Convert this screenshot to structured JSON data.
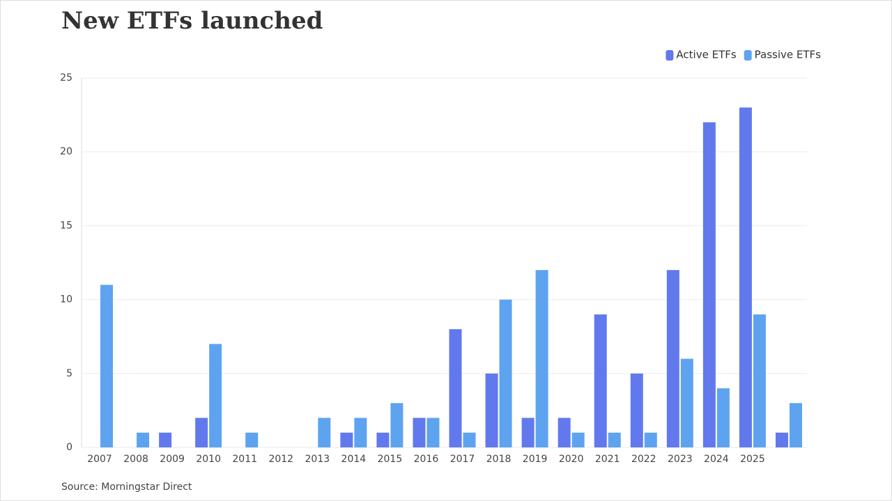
{
  "chart_data": {
    "type": "bar",
    "title": "New ETFs launched",
    "source": "Source: Morningstar Direct",
    "categories": [
      "2007",
      "2008",
      "2009",
      "2010",
      "2011",
      "2012",
      "2013",
      "2014",
      "2015",
      "2016",
      "2017",
      "2018",
      "2019",
      "2020",
      "2021",
      "2022",
      "2023",
      "2024",
      "2025",
      null
    ],
    "series": [
      {
        "name": "Active ETFs",
        "color": "#6279ee",
        "values": [
          0,
          0,
          1,
          2,
          0,
          0,
          0,
          1,
          1,
          2,
          8,
          5,
          2,
          2,
          9,
          5,
          12,
          22,
          23,
          1
        ]
      },
      {
        "name": "Passive ETFs",
        "color": "#5ea3f0",
        "values": [
          11,
          1,
          0,
          7,
          1,
          0,
          2,
          2,
          3,
          2,
          1,
          10,
          12,
          1,
          1,
          1,
          6,
          4,
          9,
          3
        ]
      }
    ],
    "ylim": [
      0,
      25
    ],
    "yticks": [
      0,
      5,
      10,
      15,
      20,
      25
    ],
    "grid": true,
    "legend": "top-right"
  }
}
